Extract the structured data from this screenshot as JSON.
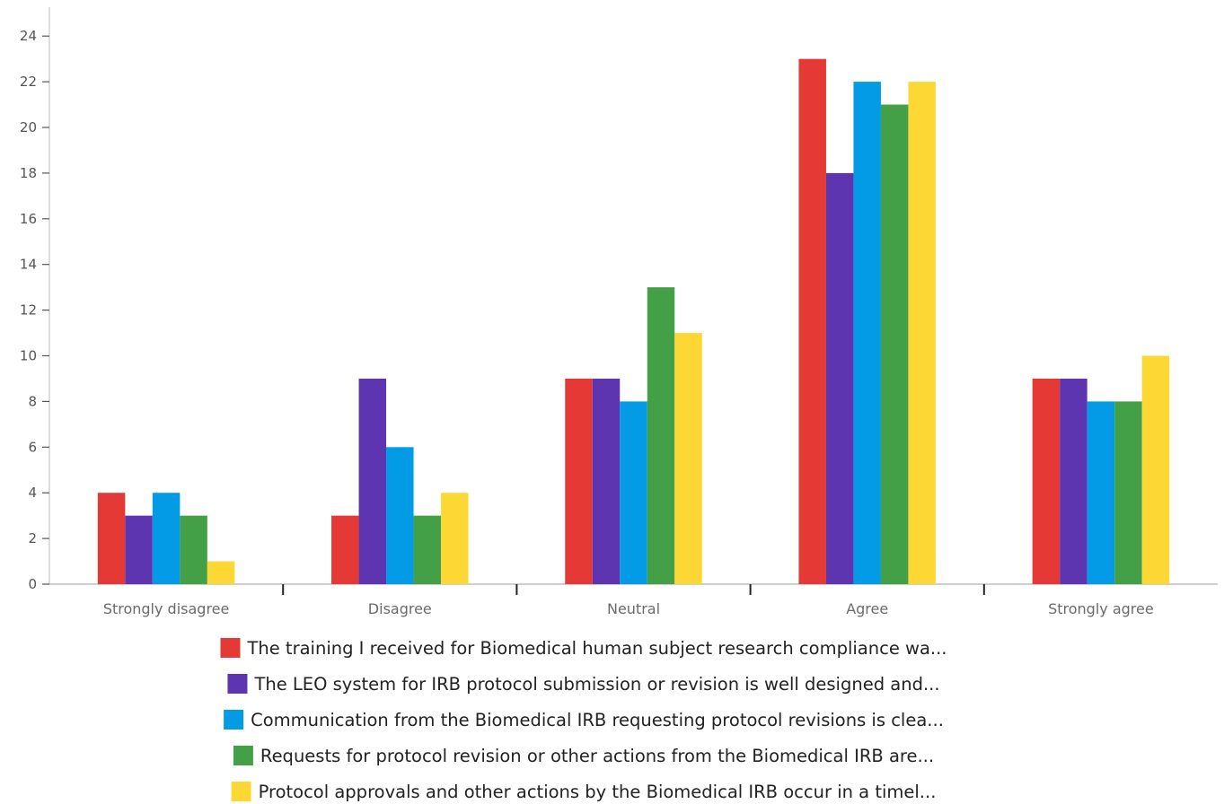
{
  "chart_data": {
    "type": "bar",
    "title": "",
    "xlabel": "",
    "ylabel": "",
    "ylim": [
      0,
      25
    ],
    "yticks": [
      0,
      2,
      4,
      6,
      8,
      10,
      12,
      14,
      16,
      18,
      20,
      22,
      24
    ],
    "grid": false,
    "legend_position": "bottom",
    "categories": [
      "Strongly disagree",
      "Disagree",
      "Neutral",
      "Agree",
      "Strongly agree"
    ],
    "series": [
      {
        "name": "The training I received for Biomedical human subject research compliance wa...",
        "color": "#e53935",
        "values": [
          4,
          3,
          9,
          23,
          9
        ]
      },
      {
        "name": "The LEO system for IRB protocol submission or revision is well designed and...",
        "color": "#5e35b1",
        "values": [
          3,
          9,
          9,
          18,
          9
        ]
      },
      {
        "name": "Communication from the Biomedical IRB requesting protocol revisions is clea...",
        "color": "#039be5",
        "values": [
          4,
          6,
          8,
          22,
          8
        ]
      },
      {
        "name": "Requests for protocol revision or other actions from the Biomedical IRB are...",
        "color": "#43a047",
        "values": [
          3,
          3,
          13,
          21,
          8
        ]
      },
      {
        "name": "Protocol approvals and other actions by the Biomedical IRB occur in a timel...",
        "color": "#fdd835",
        "values": [
          1,
          4,
          11,
          22,
          10
        ]
      }
    ]
  }
}
